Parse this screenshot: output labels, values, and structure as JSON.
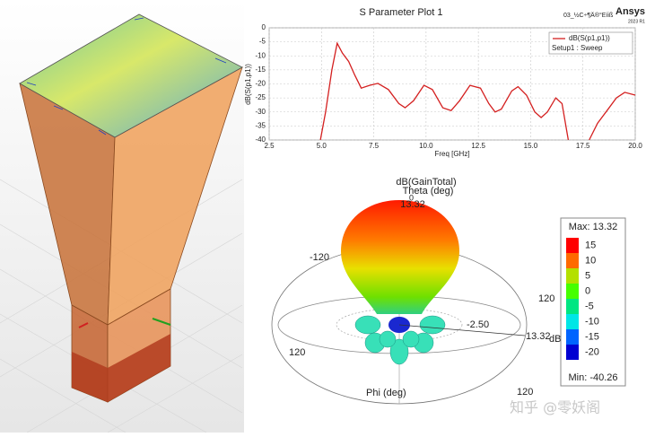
{
  "chart_data": {
    "type": "line",
    "title": "S Parameter Plot 1",
    "file_label": "03_½C÷¶Ä®°Eíiß",
    "brand": "Ansys",
    "version": "2023 R1",
    "x_label": "Freq [GHz]",
    "y_label": "dB(S(p1,p1))",
    "legend_note": "Setup1 : Sweep",
    "legend": "top-right",
    "grid": true,
    "x": [
      4.95,
      5.2,
      5.5,
      5.75,
      6.0,
      6.3,
      6.6,
      6.9,
      7.3,
      7.7,
      8.2,
      8.7,
      9.0,
      9.4,
      9.9,
      10.3,
      10.8,
      11.2,
      11.6,
      12.1,
      12.6,
      13.0,
      13.3,
      13.6,
      14.1,
      14.4,
      14.8,
      15.2,
      15.5,
      15.8,
      16.2,
      16.5,
      16.8,
      17.2,
      17.8,
      18.2,
      18.6,
      19.1,
      19.5,
      20.0
    ],
    "series": [
      {
        "name": "dB(S(p1,p1))",
        "color": "#d42020",
        "values": [
          -40,
          -30,
          -15,
          -5.5,
          -9,
          -12,
          -17,
          -21.5,
          -20.5,
          -19.8,
          -22,
          -27,
          -28.5,
          -26,
          -20.5,
          -22,
          -28.5,
          -29.5,
          -26,
          -20.5,
          -21.5,
          -27,
          -30,
          -29,
          -22.5,
          -21,
          -24,
          -30,
          -32,
          -30,
          -25,
          -27,
          -40,
          null,
          -40,
          -34,
          -30,
          -25,
          -23,
          -24
        ]
      }
    ],
    "xlim": [
      2.5,
      20
    ],
    "ylim": [
      -40,
      0
    ],
    "xticks": [
      2.5,
      {
        "value": 5,
        "label": "5.0"
      },
      {
        "value": 7.5,
        "label": "7.5"
      },
      {
        "value": 10,
        "label": "10.0"
      },
      {
        "value": 12.5,
        "label": "12.5"
      },
      {
        "value": 15,
        "label": "15.0"
      },
      {
        "value": 17.5,
        "label": "17.5"
      },
      {
        "value": 20,
        "label": "20.0"
      }
    ],
    "yticks": [
      0,
      -5,
      -10,
      -15,
      -20,
      -25,
      -30,
      -35,
      -40
    ]
  },
  "gain_plot": {
    "title": "dB(GainTotal)",
    "theta_label": "Theta (deg)",
    "theta_zero": "0",
    "peak": "13.32",
    "phi_label": "Phi (deg)",
    "angle_a": "-120",
    "angle_b": "120",
    "angle_c": "120",
    "angle_d": "120",
    "radius_min": "-2.50",
    "radius_max": "13.32",
    "unit_cut": "dB(",
    "colorbar": {
      "max_label": "Max: 13.32",
      "min_label": "Min: -40.26",
      "ticks": [
        15,
        10,
        5,
        0,
        -5,
        -10,
        -15,
        -20
      ],
      "colors": [
        "#ff0000",
        "#ff6a00",
        "#b4e000",
        "#46ff00",
        "#00e682",
        "#00e6e6",
        "#0064ff",
        "#0000d2"
      ]
    }
  },
  "watermark": "知乎 @零妖阁"
}
